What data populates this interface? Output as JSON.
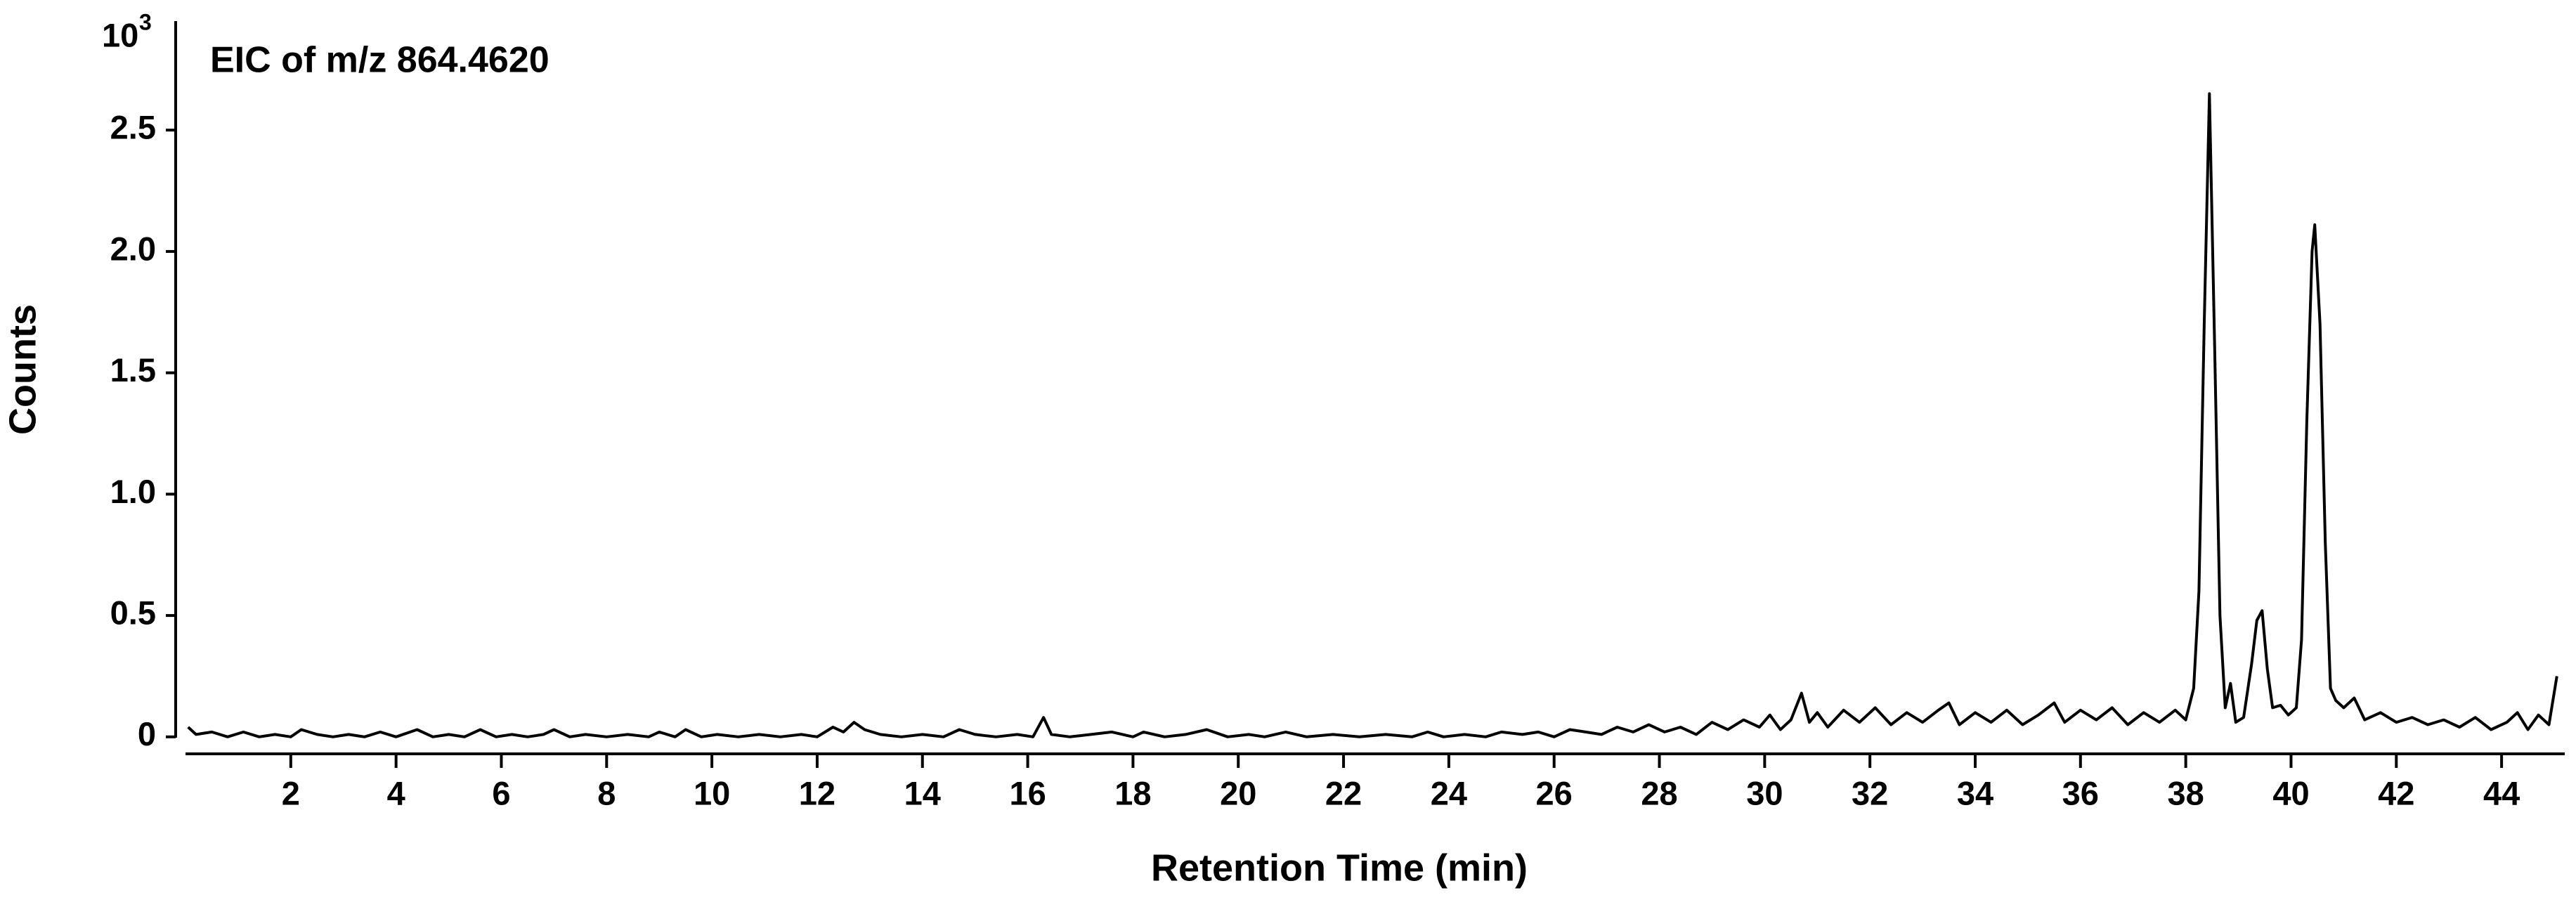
{
  "chart_data": {
    "type": "line",
    "title": "EIC of m/z 864.4620",
    "xlabel": "Retention Time (min)",
    "ylabel": "Counts",
    "y_scale": {
      "base": "10",
      "exponent": "3"
    },
    "color": "#000000",
    "xlim": [
      0,
      45.2
    ],
    "ylim": [
      -0.07,
      2.9
    ],
    "xticks": [
      2,
      4,
      6,
      8,
      10,
      12,
      14,
      16,
      18,
      20,
      22,
      24,
      26,
      28,
      30,
      32,
      34,
      36,
      38,
      40,
      42,
      44
    ],
    "yticks": [
      0,
      0.5,
      {
        "value": 1,
        "label": "1.0"
      },
      1.5,
      {
        "value": 2,
        "label": "2.0"
      },
      2.5
    ],
    "x": [
      0.05,
      0.2,
      0.5,
      0.8,
      1.1,
      1.4,
      1.7,
      2.0,
      2.2,
      2.5,
      2.8,
      3.1,
      3.4,
      3.7,
      4.0,
      4.4,
      4.7,
      5.0,
      5.3,
      5.6,
      5.9,
      6.2,
      6.5,
      6.8,
      7.0,
      7.3,
      7.6,
      8.0,
      8.4,
      8.8,
      9.0,
      9.3,
      9.5,
      9.8,
      10.1,
      10.5,
      10.9,
      11.3,
      11.7,
      12.0,
      12.3,
      12.5,
      12.7,
      12.9,
      13.2,
      13.6,
      14.0,
      14.4,
      14.7,
      15.0,
      15.4,
      15.8,
      16.1,
      16.3,
      16.45,
      16.8,
      17.2,
      17.6,
      18.0,
      18.2,
      18.6,
      19.0,
      19.4,
      19.8,
      20.2,
      20.5,
      20.9,
      21.3,
      21.8,
      22.3,
      22.8,
      23.3,
      23.6,
      23.9,
      24.3,
      24.7,
      25.0,
      25.4,
      25.7,
      26.0,
      26.3,
      26.6,
      26.9,
      27.2,
      27.5,
      27.8,
      28.1,
      28.4,
      28.7,
      29.0,
      29.3,
      29.6,
      29.9,
      30.1,
      30.3,
      30.5,
      30.7,
      30.85,
      31.0,
      31.2,
      31.5,
      31.8,
      32.1,
      32.4,
      32.7,
      33.0,
      33.3,
      33.5,
      33.7,
      34.0,
      34.3,
      34.6,
      34.9,
      35.2,
      35.5,
      35.7,
      36.0,
      36.3,
      36.6,
      36.9,
      37.2,
      37.5,
      37.8,
      38.0,
      38.15,
      38.25,
      38.35,
      38.45,
      38.55,
      38.65,
      38.75,
      38.85,
      38.95,
      39.1,
      39.25,
      39.35,
      39.45,
      39.55,
      39.65,
      39.8,
      39.95,
      40.1,
      40.2,
      40.3,
      40.4,
      40.45,
      40.55,
      40.65,
      40.75,
      40.85,
      41.0,
      41.2,
      41.4,
      41.7,
      42.0,
      42.3,
      42.6,
      42.9,
      43.2,
      43.5,
      43.8,
      44.1,
      44.3,
      44.5,
      44.7,
      44.9,
      45.05
    ],
    "values": [
      0.04,
      0.01,
      0.02,
      0.0,
      0.02,
      0.0,
      0.01,
      0.0,
      0.03,
      0.01,
      0.0,
      0.01,
      0.0,
      0.02,
      0.0,
      0.03,
      0.0,
      0.01,
      0.0,
      0.03,
      0.0,
      0.01,
      0.0,
      0.01,
      0.03,
      0.0,
      0.01,
      0.0,
      0.01,
      0.0,
      0.02,
      0.0,
      0.03,
      0.0,
      0.01,
      0.0,
      0.01,
      0.0,
      0.01,
      0.0,
      0.04,
      0.02,
      0.06,
      0.03,
      0.01,
      0.0,
      0.01,
      0.0,
      0.03,
      0.01,
      0.0,
      0.01,
      0.0,
      0.08,
      0.01,
      0.0,
      0.01,
      0.02,
      0.0,
      0.02,
      0.0,
      0.01,
      0.03,
      0.0,
      0.01,
      0.0,
      0.02,
      0.0,
      0.01,
      0.0,
      0.01,
      0.0,
      0.02,
      0.0,
      0.01,
      0.0,
      0.02,
      0.01,
      0.02,
      0.0,
      0.03,
      0.02,
      0.01,
      0.04,
      0.02,
      0.05,
      0.02,
      0.04,
      0.01,
      0.06,
      0.03,
      0.07,
      0.04,
      0.09,
      0.03,
      0.07,
      0.18,
      0.06,
      0.1,
      0.04,
      0.11,
      0.06,
      0.12,
      0.05,
      0.1,
      0.06,
      0.11,
      0.14,
      0.05,
      0.1,
      0.06,
      0.11,
      0.05,
      0.09,
      0.14,
      0.06,
      0.11,
      0.07,
      0.12,
      0.05,
      0.1,
      0.06,
      0.11,
      0.07,
      0.2,
      0.6,
      1.7,
      2.65,
      1.6,
      0.5,
      0.12,
      0.22,
      0.06,
      0.08,
      0.3,
      0.48,
      0.52,
      0.28,
      0.12,
      0.13,
      0.09,
      0.12,
      0.4,
      1.3,
      2.0,
      2.11,
      1.7,
      0.8,
      0.2,
      0.15,
      0.12,
      0.16,
      0.07,
      0.1,
      0.06,
      0.08,
      0.05,
      0.07,
      0.04,
      0.08,
      0.03,
      0.06,
      0.1,
      0.03,
      0.09,
      0.05,
      0.25
    ]
  }
}
